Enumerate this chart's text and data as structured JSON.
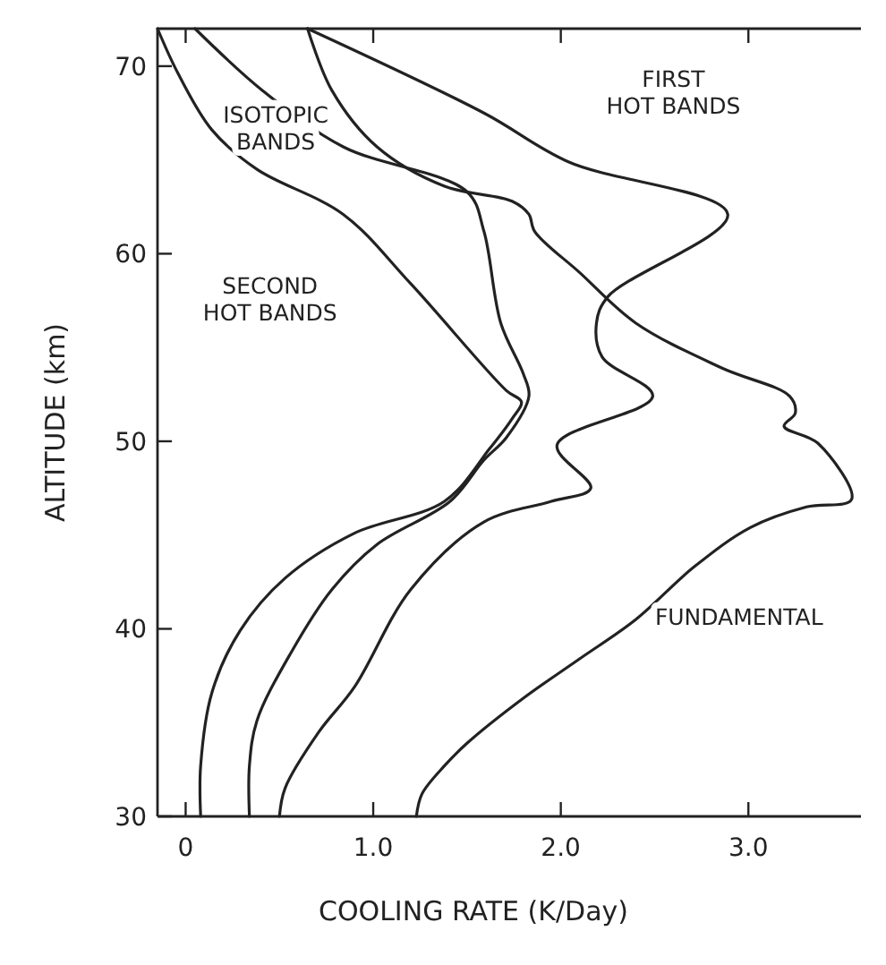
{
  "chart_data": {
    "type": "line",
    "xlabel": "COOLING RATE (K/Day)",
    "ylabel": "ALTITUDE (km)",
    "xlim": [
      -0.15,
      3.6
    ],
    "ylim": [
      30,
      72
    ],
    "xticks": [
      0,
      {
        "value": 1,
        "label": "1.0"
      },
      {
        "value": 2,
        "label": "2.0"
      },
      {
        "value": 3,
        "label": "3.0"
      }
    ],
    "yticks": [
      30,
      40,
      50,
      60,
      70
    ],
    "grid": false,
    "marker": "none",
    "line_style": "solid",
    "series": [
      {
        "name": "ISOTOPIC BANDS",
        "color": "#222222",
        "x": [
          0.05,
          0.41,
          0.84,
          1.5,
          1.59,
          1.68,
          1.8,
          1.83,
          1.71,
          1.59,
          1.41,
          1.02,
          0.78,
          0.56,
          0.38,
          0.34,
          0.34
        ],
        "values": [
          72,
          68.7,
          65.7,
          63.3,
          61.2,
          56.3,
          53.6,
          52.4,
          50.2,
          49,
          46.8,
          44.5,
          42.1,
          38.7,
          35.1,
          32.7,
          30
        ]
      },
      {
        "name": "FIRST HOT BANDS",
        "color": "#222222",
        "x": [
          0.65,
          1.59,
          2.04,
          2.89,
          2.25,
          2.19,
          2.22,
          2.49,
          1.98,
          2.16,
          1.95,
          1.59,
          1.2,
          0.9,
          0.71,
          0.53,
          0.5
        ],
        "values": [
          72,
          67.5,
          64.9,
          62.1,
          57.7,
          56.3,
          54.5,
          52.4,
          49.8,
          47.5,
          46.8,
          45.7,
          42.1,
          36.9,
          34.5,
          31.5,
          30
        ]
      },
      {
        "name": "SECOND HOT BANDS",
        "color": "#222222",
        "x": [
          -0.15,
          -0.04,
          0.14,
          0.38,
          0.84,
          1.2,
          1.71,
          1.79,
          1.74,
          1.62,
          1.38,
          0.9,
          0.53,
          0.29,
          0.14,
          0.08,
          0.08
        ],
        "values": [
          72,
          69.6,
          66.6,
          64.5,
          62.1,
          58.4,
          52.7,
          52.1,
          51.2,
          49.6,
          46.8,
          45.1,
          42.7,
          39.9,
          36.6,
          32.7,
          30
        ]
      },
      {
        "name": "FUNDAMENTAL",
        "color": "#222222",
        "x": [
          0.65,
          0.78,
          1.02,
          1.38,
          1.74,
          1.83,
          1.86,
          2.1,
          2.4,
          2.86,
          3.22,
          3.25,
          3.19,
          3.37,
          3.55,
          3.31,
          3.01,
          2.71,
          2.4,
          2.1,
          1.8,
          1.5,
          1.38,
          1.26,
          1.23
        ],
        "values": [
          72,
          68.7,
          65.7,
          63.6,
          62.8,
          62.1,
          61.2,
          59,
          56.3,
          53.9,
          52.4,
          51.5,
          50.8,
          49.9,
          46.9,
          46.5,
          45.4,
          43.3,
          40.5,
          38.4,
          36.3,
          33.9,
          32.7,
          31.2,
          30
        ]
      }
    ]
  }
}
